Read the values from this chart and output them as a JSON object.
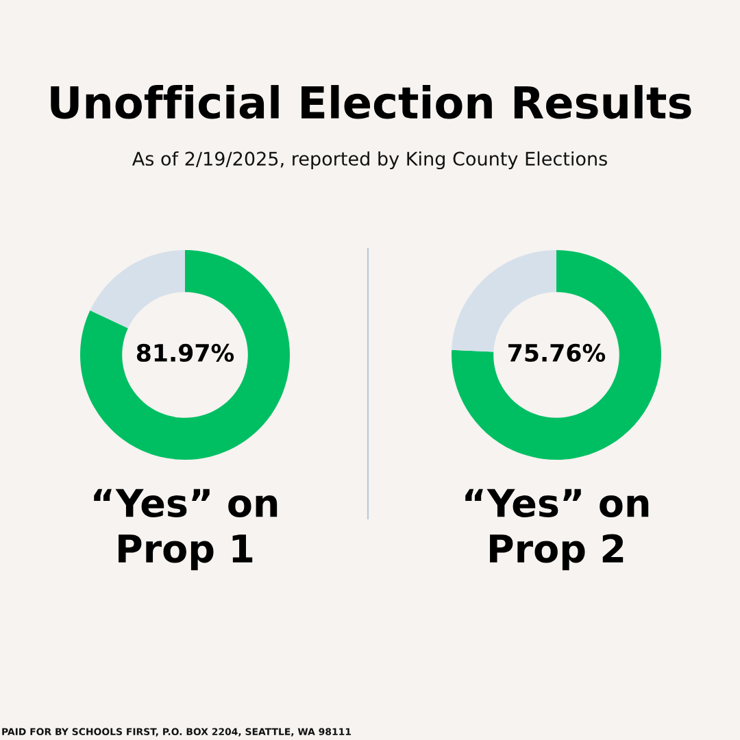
{
  "chart_data": [
    {
      "type": "donut",
      "title": "Unofficial Election Results",
      "subtitle": "As of 2/19/2025, reported by King County Elections",
      "xlabel": "“Yes” on\nProp 1",
      "categories": [
        null,
        null
      ],
      "values": [
        81.97,
        18.03
      ],
      "colors": [
        "#00bf63",
        "#d6e0ea"
      ],
      "value_labels": [
        "81.97%",
        null
      ],
      "annotations": [
        "PAID FOR BY SCHOOLS FIRST, P.O. BOX 2204, SEATTLE, WA 98111"
      ]
    },
    {
      "type": "donut",
      "xlabel": "“Yes” on\nProp 2",
      "categories": [
        null,
        null
      ],
      "values": [
        75.76,
        24.24
      ],
      "colors": [
        "#00bf63",
        "#d6e0ea"
      ],
      "value_labels": [
        "75.76%",
        null
      ]
    }
  ]
}
